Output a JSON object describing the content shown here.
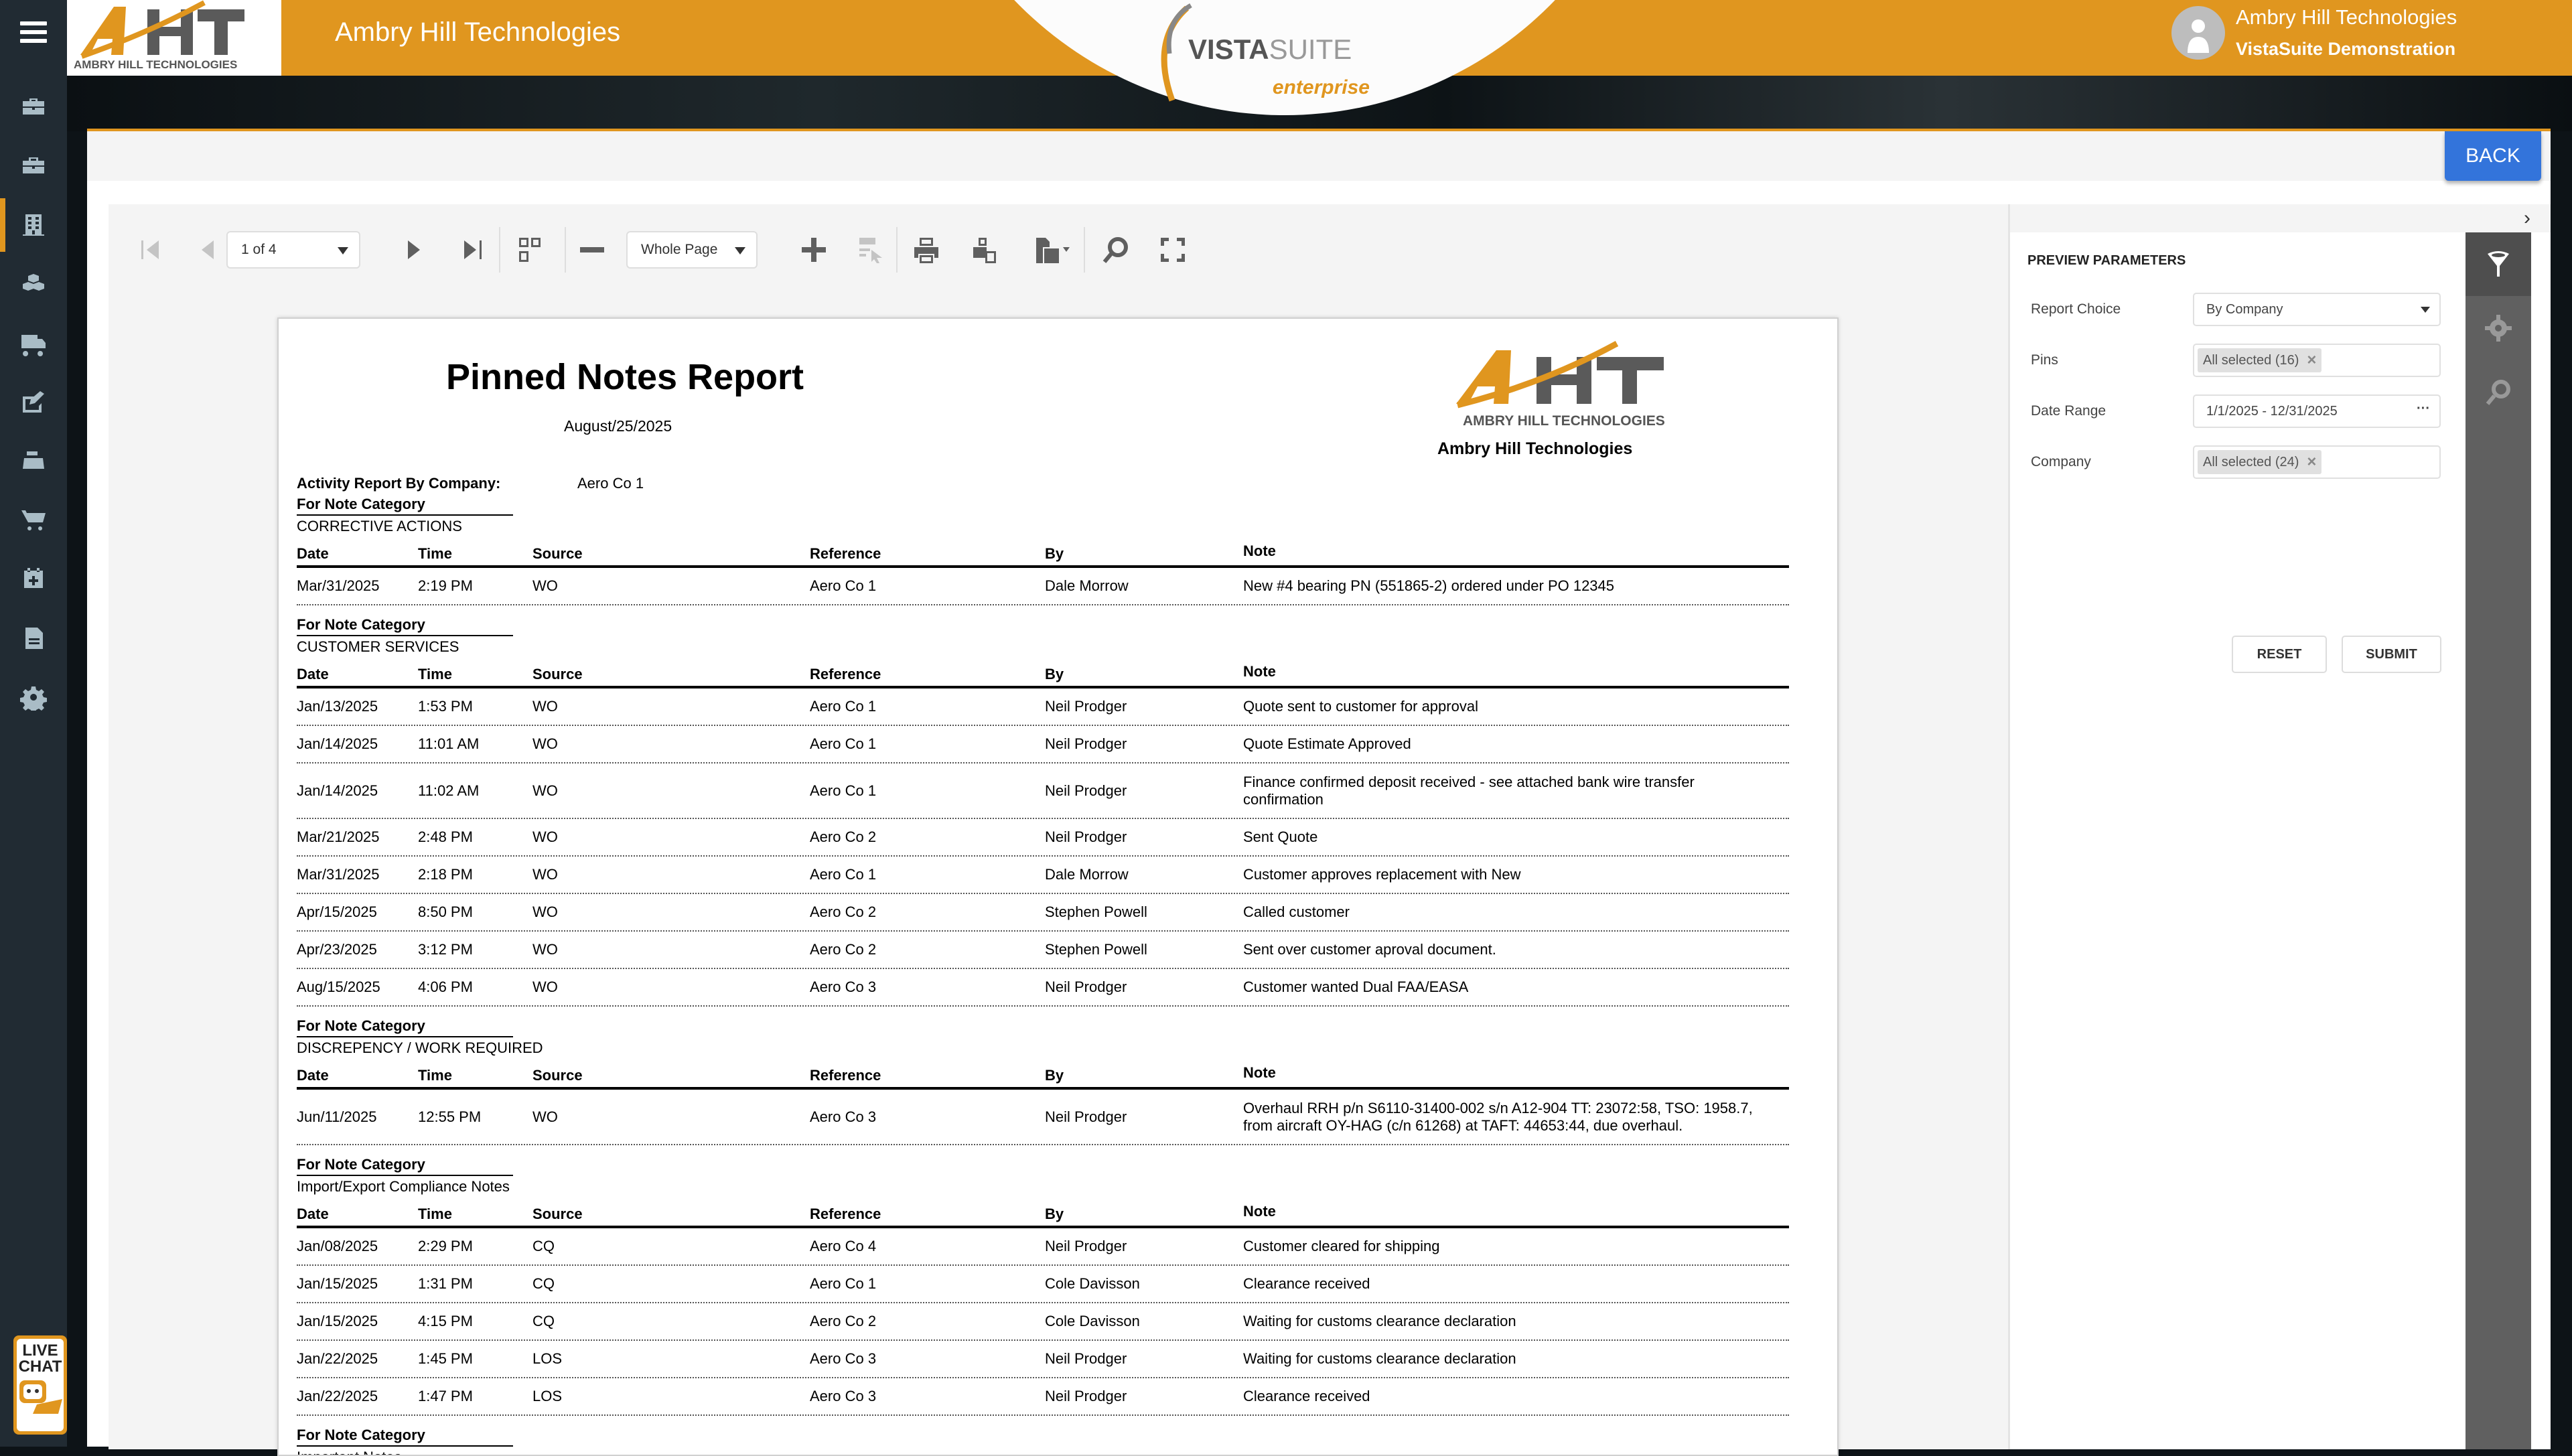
{
  "header": {
    "company_title": "Ambry Hill Technologies",
    "logo_text": "AMBRY HILL TECHNOLOGIES",
    "product_logo": {
      "primary": "VISTA",
      "secondary": "SUITE",
      "tagline": "enterprise"
    },
    "user": {
      "name": "Ambry Hill Technologies",
      "subtitle": "VistaSuite Demonstration"
    }
  },
  "colors": {
    "brand_orange": "#e0961f",
    "sidebar_bg": "#212b33",
    "back_button": "#3374db"
  },
  "sidebar": {
    "items": [
      {
        "icon": "briefcase-icon"
      },
      {
        "icon": "toolbox-icon"
      },
      {
        "icon": "building-icon",
        "active": true
      },
      {
        "icon": "boxes-icon"
      },
      {
        "icon": "truck-icon"
      },
      {
        "icon": "edit-icon"
      },
      {
        "icon": "cash-register-icon"
      },
      {
        "icon": "cart-icon"
      },
      {
        "icon": "calendar-plus-icon"
      },
      {
        "icon": "document-icon"
      },
      {
        "icon": "gear-icon"
      }
    ],
    "live_chat": {
      "line1": "LIVE",
      "line2": "CHAT"
    }
  },
  "back_label": "BACK",
  "toolbar": {
    "page_selector": "1 of 4",
    "zoom_mode": "Whole Page"
  },
  "parameters": {
    "title": "PREVIEW PARAMETERS",
    "fields": [
      {
        "label": "Report Choice",
        "value": "By Company",
        "type": "select"
      },
      {
        "label": "Pins",
        "value": "All selected (16)",
        "type": "tags"
      },
      {
        "label": "Date Range",
        "value": "1/1/2025 - 12/31/2025",
        "type": "range"
      },
      {
        "label": "Company",
        "value": "All selected (24)",
        "type": "tags"
      }
    ],
    "reset_label": "RESET",
    "submit_label": "SUBMIT"
  },
  "report": {
    "title": "Pinned Notes Report",
    "date": "August/25/2025",
    "logo_text": "AMBRY HILL TECHNOLOGIES",
    "company": "Ambry Hill Technologies",
    "activity_label": "Activity Report By Company:",
    "activity_value": "Aero Co 1",
    "category_label": "For Note Category",
    "columns": [
      "Date",
      "Time",
      "Source",
      "Reference",
      "By",
      "Note"
    ],
    "sections": [
      {
        "category": "CORRECTIVE ACTIONS",
        "rows": [
          [
            "Mar/31/2025",
            "2:19 PM",
            "WO",
            "Aero Co 1",
            "Dale Morrow",
            "New #4 bearing PN (551865-2) ordered under PO 12345"
          ]
        ]
      },
      {
        "category": "CUSTOMER SERVICES",
        "rows": [
          [
            "Jan/13/2025",
            "1:53 PM",
            "WO",
            "Aero Co 1",
            "Neil Prodger",
            "Quote sent to customer for approval"
          ],
          [
            "Jan/14/2025",
            "11:01 AM",
            "WO",
            "Aero Co 1",
            "Neil Prodger",
            "Quote Estimate Approved"
          ],
          [
            "Jan/14/2025",
            "11:02 AM",
            "WO",
            "Aero Co 1",
            "Neil Prodger",
            "Finance confirmed deposit received - see attached bank wire transfer confirmation"
          ],
          [
            "Mar/21/2025",
            "2:48 PM",
            "WO",
            "Aero Co 2",
            "Neil Prodger",
            "Sent Quote"
          ],
          [
            "Mar/31/2025",
            "2:18 PM",
            "WO",
            "Aero Co 1",
            "Dale Morrow",
            "Customer approves replacement with New"
          ],
          [
            "Apr/15/2025",
            "8:50 PM",
            "WO",
            "Aero Co 2",
            "Stephen Powell",
            "Called customer"
          ],
          [
            "Apr/23/2025",
            "3:12 PM",
            "WO",
            "Aero Co 2",
            "Stephen Powell",
            "Sent over customer aproval document."
          ],
          [
            "Aug/15/2025",
            "4:06 PM",
            "WO",
            "Aero Co 3",
            "Neil Prodger",
            "Customer wanted Dual FAA/EASA"
          ]
        ]
      },
      {
        "category": "DISCREPENCY / WORK REQUIRED",
        "rows": [
          [
            "Jun/11/2025",
            "12:55 PM",
            "WO",
            "Aero Co 3",
            "Neil Prodger",
            "Overhaul RRH p/n S6110-31400-002 s/n A12-904 TT: 23072:58, TSO: 1958.7, from aircraft OY-HAG (c/n 61268) at TAFT: 44653:44, due overhaul."
          ]
        ]
      },
      {
        "category": "Import/Export Compliance Notes",
        "rows": [
          [
            "Jan/08/2025",
            "2:29 PM",
            "CQ",
            "Aero Co 4",
            "Neil Prodger",
            "Customer cleared for shipping"
          ],
          [
            "Jan/15/2025",
            "1:31 PM",
            "CQ",
            "Aero Co 1",
            "Cole Davisson",
            "Clearance received"
          ],
          [
            "Jan/15/2025",
            "4:15 PM",
            "CQ",
            "Aero Co 2",
            "Cole Davisson",
            "Waiting for customs clearance declaration"
          ],
          [
            "Jan/22/2025",
            "1:45 PM",
            "LOS",
            "Aero Co 3",
            "Neil Prodger",
            "Waiting for customs clearance declaration"
          ],
          [
            "Jan/22/2025",
            "1:47 PM",
            "LOS",
            "Aero Co 3",
            "Neil Prodger",
            "Clearance received"
          ]
        ]
      },
      {
        "category": "Important Notes",
        "rows": []
      }
    ]
  }
}
